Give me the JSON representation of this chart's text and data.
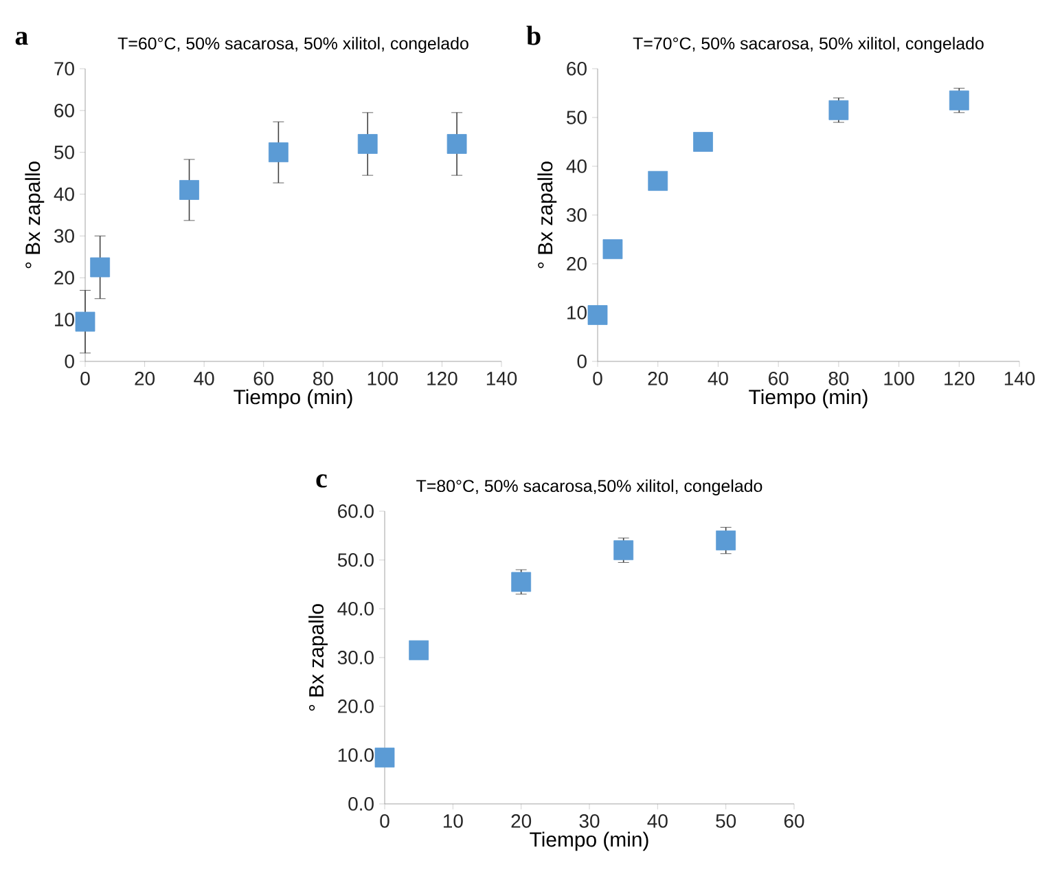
{
  "chart_data": [
    {
      "type": "scatter",
      "title": "T=60°C, 50% sacarosa, 50% xilitol, congelado",
      "xlabel": "Tiempo (min)",
      "ylabel": "° Bx zapallo",
      "annotations": [
        "a"
      ],
      "color": "#5b9bd5",
      "marker": "square",
      "x": [
        0,
        5,
        35,
        65,
        95,
        125
      ],
      "values": [
        9.5,
        22.5,
        41,
        50,
        52,
        52
      ],
      "errors": [
        7.5,
        7.5,
        7.3,
        7.3,
        7.5,
        7.5
      ],
      "xlim": [
        0,
        140
      ],
      "ylim": [
        0,
        70
      ],
      "xticks": [
        0,
        20,
        40,
        60,
        80,
        100,
        120,
        140
      ],
      "yticks": [
        0,
        10,
        20,
        30,
        40,
        50,
        60,
        70
      ]
    },
    {
      "type": "scatter",
      "title": "T=70°C, 50% sacarosa, 50% xilitol, congelado",
      "xlabel": "Tiempo (min)",
      "ylabel": "° Bx zapallo",
      "annotations": [
        "b"
      ],
      "color": "#5b9bd5",
      "marker": "square",
      "x": [
        0,
        5,
        20,
        35,
        80,
        120
      ],
      "values": [
        9.5,
        23,
        37,
        45,
        51.5,
        53.5
      ],
      "errors": [
        null,
        null,
        null,
        null,
        2.5,
        2.5
      ],
      "xlim": [
        0,
        140
      ],
      "ylim": [
        0,
        60
      ],
      "xticks": [
        0,
        20,
        40,
        60,
        80,
        100,
        120,
        140
      ],
      "yticks": [
        0,
        10,
        20,
        30,
        40,
        50,
        60
      ]
    },
    {
      "type": "scatter",
      "title": "T=80°C, 50% sacarosa,50% xilitol, congelado",
      "xlabel": "Tiempo (min)",
      "ylabel": "° Bx zapallo",
      "annotations": [
        "c"
      ],
      "color": "#5b9bd5",
      "marker": "square",
      "x": [
        0,
        5,
        20,
        35,
        50
      ],
      "values": [
        9.5,
        31.5,
        45.5,
        52,
        54
      ],
      "errors": [
        null,
        null,
        2.5,
        2.5,
        2.7
      ],
      "xlim": [
        0,
        60
      ],
      "ylim": [
        0,
        60
      ],
      "xticks": [
        0,
        10,
        20,
        30,
        40,
        50,
        60
      ],
      "yticks": [
        {
          "value": 0,
          "label": "0.0"
        },
        {
          "value": 10,
          "label": "10.0"
        },
        {
          "value": 20,
          "label": "20.0"
        },
        {
          "value": 30,
          "label": "30.0"
        },
        {
          "value": 40,
          "label": "40.0"
        },
        {
          "value": 50,
          "label": "50.0"
        },
        {
          "value": 60,
          "label": "60.0"
        }
      ]
    }
  ]
}
